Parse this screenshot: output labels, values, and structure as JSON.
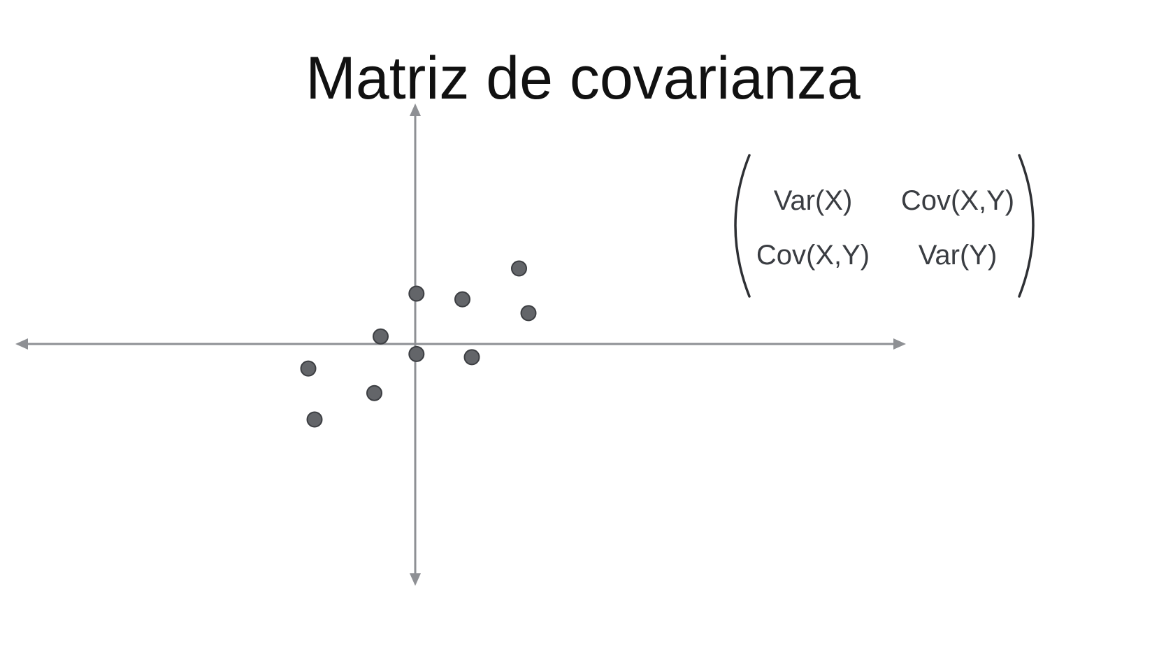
{
  "title": "Matriz de covarianza",
  "colors": {
    "axis": "#8e9094",
    "point_fill": "#636569",
    "point_stroke": "#3c3e42",
    "matrix_text": "#3a3d42",
    "title_text": "#111111"
  },
  "scatter": {
    "points": [
      {
        "x": 0.02,
        "y": 0.8
      },
      {
        "x": 0.75,
        "y": 0.71
      },
      {
        "x": 1.65,
        "y": 1.2
      },
      {
        "x": 1.8,
        "y": 0.49
      },
      {
        "x": -0.55,
        "y": 0.12
      },
      {
        "x": 0.02,
        "y": -0.16
      },
      {
        "x": 0.9,
        "y": -0.21
      },
      {
        "x": -1.7,
        "y": -0.39
      },
      {
        "x": -0.65,
        "y": -0.78
      },
      {
        "x": -1.6,
        "y": -1.2
      }
    ]
  },
  "matrix": {
    "cells": [
      [
        "Var(X)",
        "Cov(X,Y)"
      ],
      [
        "Cov(X,Y)",
        "Var(Y)"
      ]
    ]
  }
}
